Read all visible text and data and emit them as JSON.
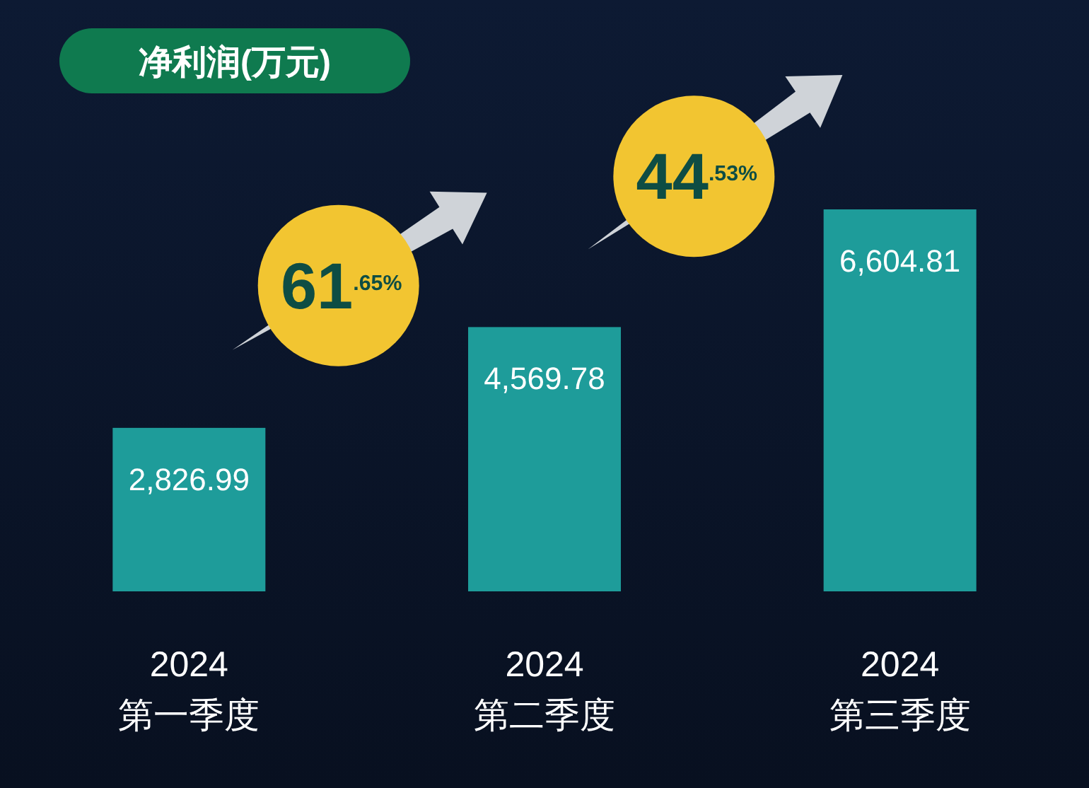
{
  "chart_data": {
    "type": "bar",
    "title": "净利润(万元)",
    "categories": [
      "2024\n第一季度",
      "2024\n第二季度",
      "2024\n第三季度"
    ],
    "values": [
      2826.99,
      4569.78,
      6604.81
    ],
    "color": "#1e9c9a",
    "value_labels": [
      "2,826.99",
      "4,569.78",
      "6,604.81"
    ],
    "annotations": [
      "61$^{.65%}$",
      "44$^{.53%}$"
    ]
  }
}
